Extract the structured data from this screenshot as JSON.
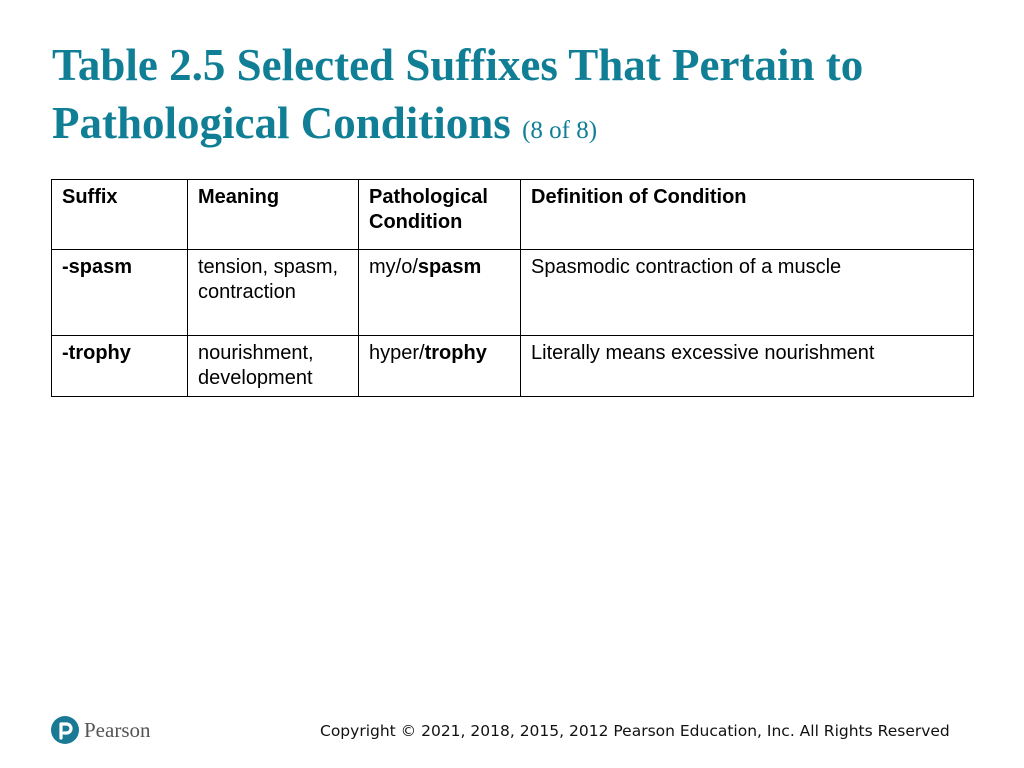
{
  "slide": {
    "title": "Table 2.5 Selected Suffixes That Pertain to Pathological Conditions",
    "subtitle": "(8 of 8)"
  },
  "table": {
    "headers": {
      "suffix": "Suffix",
      "meaning": "Meaning",
      "pathological_condition": "Pathological Condition",
      "definition": "Definition of Condition"
    },
    "rows": [
      {
        "suffix": "-spasm",
        "meaning": "tension, spasm, contraction",
        "condition_prefix": "my/o/",
        "condition_suffix": "spasm",
        "definition": "Spasmodic contraction of a muscle"
      },
      {
        "suffix": "-trophy",
        "meaning": "nourishment, development",
        "condition_prefix": "hyper/",
        "condition_suffix": "trophy",
        "definition": "Literally means excessive nourishment"
      }
    ]
  },
  "footer": {
    "brand": "Pearson",
    "brand_icon": "pearson-p-logo",
    "brand_color": "#1a7a96",
    "copyright": "Copyright © 2021, 2018, 2015, 2012 Pearson Education, Inc. All Rights Reserved"
  },
  "colors": {
    "title": "#107f96",
    "table_border": "#000000"
  }
}
